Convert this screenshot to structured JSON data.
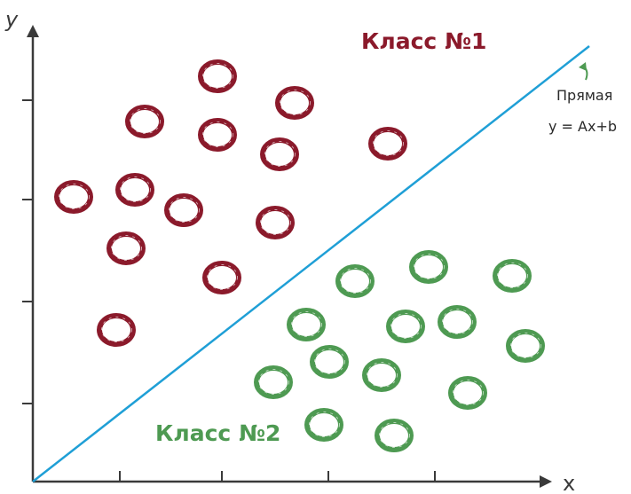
{
  "axes": {
    "x_label": "x",
    "y_label": "y"
  },
  "classes": {
    "class1_label": "Класс №1",
    "class2_label": "Класс №2",
    "class1_color": "#8b1a2b",
    "class2_color": "#4e9a52"
  },
  "line": {
    "label_line1": "Прямая",
    "label_line2": "y = Ax+b",
    "color": "#1f9fd6"
  },
  "points": {
    "class1": [
      [
        2.08,
        4.57
      ],
      [
        1.26,
        4.06
      ],
      [
        2.08,
        3.91
      ],
      [
        2.95,
        4.27
      ],
      [
        2.78,
        3.69
      ],
      [
        4.0,
        3.81
      ],
      [
        0.46,
        3.21
      ],
      [
        1.15,
        3.29
      ],
      [
        1.7,
        3.06
      ],
      [
        2.73,
        2.92
      ],
      [
        1.05,
        2.63
      ],
      [
        2.13,
        2.3
      ],
      [
        0.94,
        1.71
      ]
    ],
    "class2": [
      [
        4.46,
        2.42
      ],
      [
        3.63,
        2.26
      ],
      [
        5.4,
        2.32
      ],
      [
        4.2,
        1.75
      ],
      [
        3.08,
        1.77
      ],
      [
        4.78,
        1.8
      ],
      [
        5.55,
        1.53
      ],
      [
        3.34,
        1.35
      ],
      [
        3.93,
        1.2
      ],
      [
        2.71,
        1.12
      ],
      [
        4.9,
        1.0
      ],
      [
        3.28,
        0.64
      ],
      [
        4.07,
        0.52
      ]
    ]
  }
}
